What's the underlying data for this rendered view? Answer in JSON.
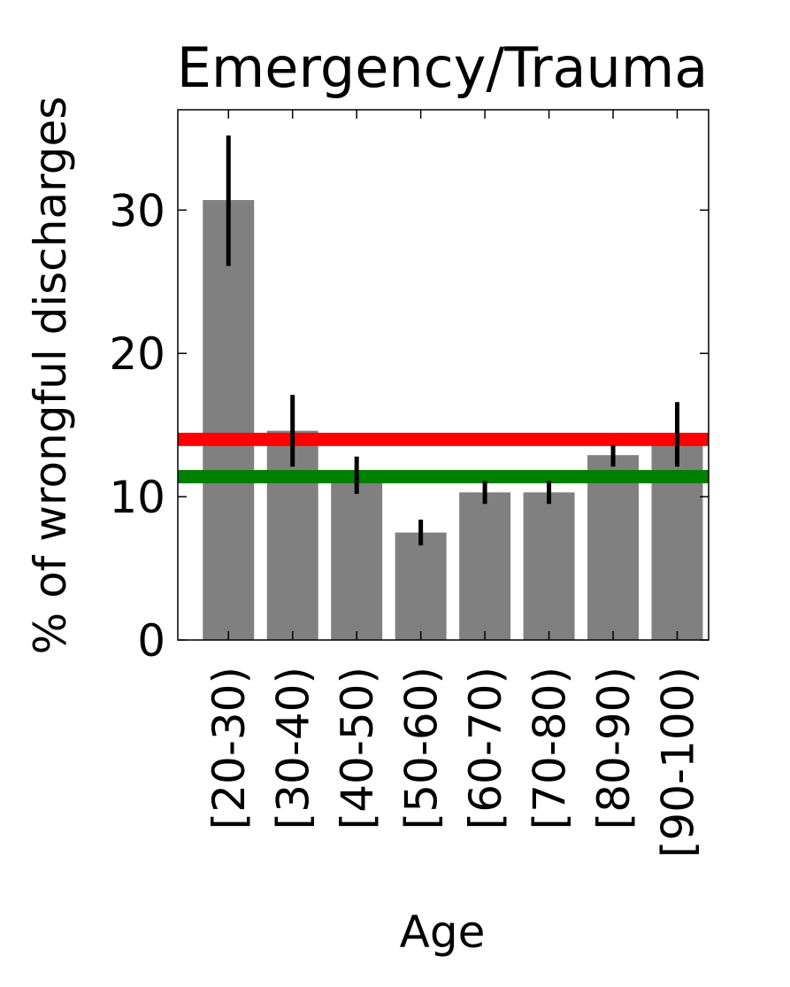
{
  "chart_data": {
    "type": "bar",
    "title": "Emergency/Trauma",
    "xlabel": "Age",
    "ylabel": "% of wrongful discharges",
    "categories": [
      "[20-30)",
      "[30-40)",
      "[40-50)",
      "[50-60)",
      "[60-70)",
      "[70-80)",
      "[80-90)",
      "[90-100)"
    ],
    "values": [
      30.7,
      14.6,
      11.5,
      7.5,
      10.3,
      10.3,
      12.9,
      14.3
    ],
    "error_low": [
      26.1,
      12.1,
      10.2,
      6.6,
      9.5,
      9.5,
      12.1,
      12.1
    ],
    "error_high": [
      35.2,
      17.1,
      12.8,
      8.4,
      11.1,
      11.1,
      13.6,
      16.6
    ],
    "ylim": [
      0,
      37
    ],
    "yticks": [
      0,
      10,
      20,
      30
    ],
    "reference_lines": [
      {
        "value": 14.0,
        "color": "#ff0000"
      },
      {
        "value": 11.4,
        "color": "#008000"
      }
    ],
    "bar_color": "#808080",
    "error_bar_color": "#000000",
    "grid": false
  }
}
